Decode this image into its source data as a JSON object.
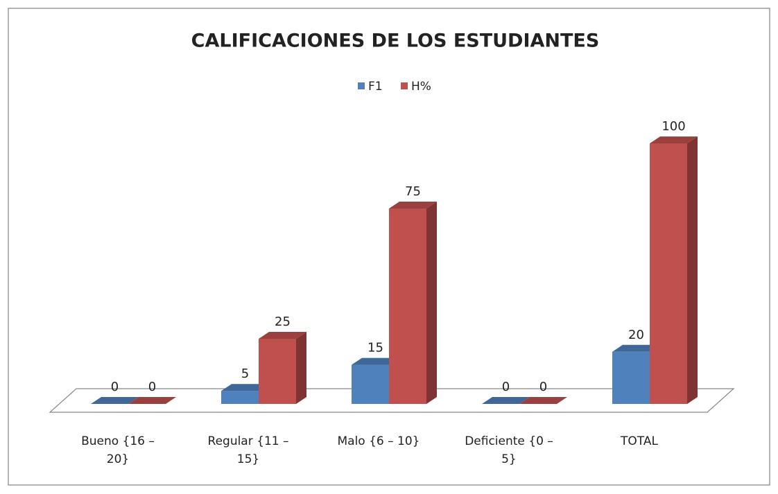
{
  "chart_data": {
    "type": "bar3d",
    "title": "CALIFICACIONES DE LOS ESTUDIANTES",
    "categories": [
      "Bueno {16 – 20}",
      "Regular {11 – 15}",
      "Malo {6 – 10}",
      "Deficiente {0 – 5}",
      "TOTAL"
    ],
    "series": [
      {
        "name": "F1",
        "color": "#4f81bd",
        "values": [
          0,
          5,
          15,
          0,
          20
        ]
      },
      {
        "name": "H%",
        "color": "#c0504d",
        "values": [
          0,
          25,
          75,
          0,
          100
        ]
      }
    ],
    "legend": "top"
  }
}
